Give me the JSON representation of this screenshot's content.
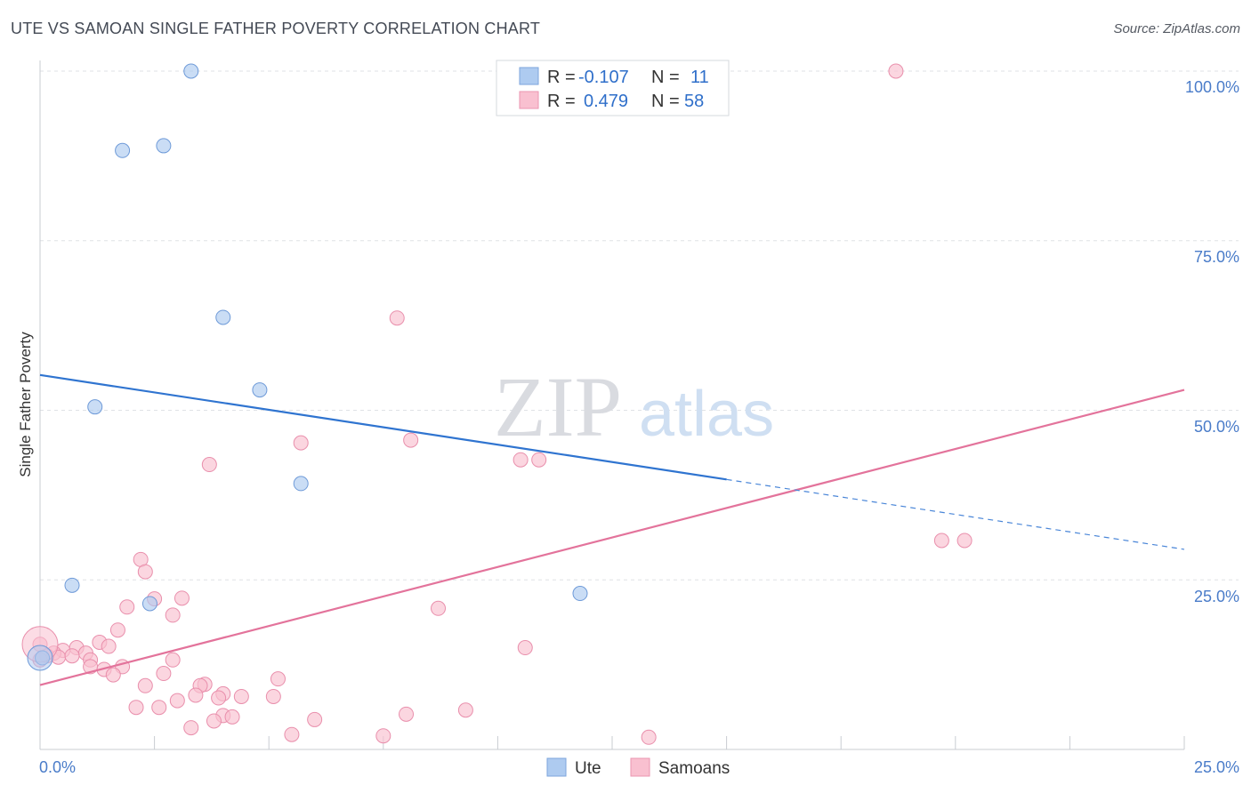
{
  "header": {
    "title": "UTE VS SAMOAN SINGLE FATHER POVERTY CORRELATION CHART",
    "source": "Source: ZipAtlas.com"
  },
  "watermark": {
    "zip": "ZIP",
    "atlas": "atlas"
  },
  "legend": {
    "rows": [
      {
        "r_label": "R =",
        "r_value": "-0.107",
        "n_label": "N =",
        "n_value": "11",
        "color": "#aecbf0"
      },
      {
        "r_label": "R =",
        "r_value": "0.479",
        "n_label": "N =",
        "n_value": "58",
        "color": "#f9c0d0"
      }
    ]
  },
  "chart_data": {
    "type": "scatter",
    "title": "UTE VS SAMOAN SINGLE FATHER POVERTY CORRELATION CHART",
    "xlabel": "",
    "ylabel": "Single Father Poverty",
    "xlim": [
      0,
      25
    ],
    "ylim": [
      0,
      100
    ],
    "x_tick_labels": [
      "0.0%",
      "25.0%"
    ],
    "y_ticks": [
      25,
      50,
      75,
      100
    ],
    "y_tick_labels": [
      "25.0%",
      "50.0%",
      "75.0%",
      "100.0%"
    ],
    "grid": true,
    "series": [
      {
        "name": "Ute",
        "color": "#aecbf0",
        "stroke": "#6e9ad8",
        "points": [
          {
            "x": 3.3,
            "y": 100
          },
          {
            "x": 1.8,
            "y": 88.3
          },
          {
            "x": 2.7,
            "y": 89
          },
          {
            "x": 4.0,
            "y": 63.7
          },
          {
            "x": 4.8,
            "y": 53
          },
          {
            "x": 1.2,
            "y": 50.5
          },
          {
            "x": 5.7,
            "y": 39.2
          },
          {
            "x": 0.7,
            "y": 24.2
          },
          {
            "x": 2.4,
            "y": 21.5
          },
          {
            "x": 11.8,
            "y": 23
          },
          {
            "x": 0.05,
            "y": 13.5
          }
        ],
        "trend": {
          "x0": 0,
          "y0": 55.2,
          "x1": 15,
          "y1": 39.8,
          "x_dash_end": 25,
          "y_dash_end": 29.5
        }
      },
      {
        "name": "Samoans",
        "color": "#f9c0d0",
        "stroke": "#e98fac",
        "points": [
          {
            "x": 18.7,
            "y": 100
          },
          {
            "x": 7.8,
            "y": 63.6
          },
          {
            "x": 5.7,
            "y": 45.2
          },
          {
            "x": 8.1,
            "y": 45.6
          },
          {
            "x": 3.7,
            "y": 42
          },
          {
            "x": 10.5,
            "y": 42.7
          },
          {
            "x": 10.9,
            "y": 42.7
          },
          {
            "x": 19.7,
            "y": 30.8
          },
          {
            "x": 20.2,
            "y": 30.8
          },
          {
            "x": 2.2,
            "y": 28
          },
          {
            "x": 2.3,
            "y": 26.2
          },
          {
            "x": 2.5,
            "y": 22.2
          },
          {
            "x": 3.1,
            "y": 22.3
          },
          {
            "x": 1.9,
            "y": 21
          },
          {
            "x": 8.7,
            "y": 20.8
          },
          {
            "x": 2.9,
            "y": 19.8
          },
          {
            "x": 1.7,
            "y": 17.6
          },
          {
            "x": 1.3,
            "y": 15.8
          },
          {
            "x": 1.5,
            "y": 15.2
          },
          {
            "x": 10.6,
            "y": 15
          },
          {
            "x": 0.8,
            "y": 15
          },
          {
            "x": 0.5,
            "y": 14.6
          },
          {
            "x": 0.3,
            "y": 14.2
          },
          {
            "x": 1.0,
            "y": 14.2
          },
          {
            "x": 0.15,
            "y": 13.8
          },
          {
            "x": 0.4,
            "y": 13.6
          },
          {
            "x": 0.7,
            "y": 13.8
          },
          {
            "x": 1.8,
            "y": 12.2
          },
          {
            "x": 1.1,
            "y": 13.2
          },
          {
            "x": 2.9,
            "y": 13.2
          },
          {
            "x": 1.1,
            "y": 12.2
          },
          {
            "x": 1.4,
            "y": 11.8
          },
          {
            "x": 1.6,
            "y": 11
          },
          {
            "x": 2.7,
            "y": 11.2
          },
          {
            "x": 5.2,
            "y": 10.4
          },
          {
            "x": 3.6,
            "y": 9.6
          },
          {
            "x": 3.5,
            "y": 9.4
          },
          {
            "x": 2.3,
            "y": 9.4
          },
          {
            "x": 3.4,
            "y": 8
          },
          {
            "x": 4.0,
            "y": 8.2
          },
          {
            "x": 4.4,
            "y": 7.8
          },
          {
            "x": 3.9,
            "y": 7.6
          },
          {
            "x": 5.1,
            "y": 7.8
          },
          {
            "x": 3.0,
            "y": 7.2
          },
          {
            "x": 2.1,
            "y": 6.2
          },
          {
            "x": 2.6,
            "y": 6.2
          },
          {
            "x": 9.3,
            "y": 5.8
          },
          {
            "x": 4.0,
            "y": 5
          },
          {
            "x": 4.2,
            "y": 4.8
          },
          {
            "x": 8.0,
            "y": 5.2
          },
          {
            "x": 3.8,
            "y": 4.2
          },
          {
            "x": 6.0,
            "y": 4.4
          },
          {
            "x": 3.3,
            "y": 3.2
          },
          {
            "x": 5.5,
            "y": 2.2
          },
          {
            "x": 7.5,
            "y": 2
          },
          {
            "x": 13.3,
            "y": 1.8
          },
          {
            "x": 0.0,
            "y": 15.5
          },
          {
            "x": 0.0,
            "y": 13.2
          }
        ],
        "trend": {
          "x0": 0,
          "y0": 9.5,
          "x1": 25,
          "y1": 53
        }
      }
    ]
  },
  "bottom_legend": {
    "items": [
      "Ute",
      "Samoans"
    ]
  }
}
